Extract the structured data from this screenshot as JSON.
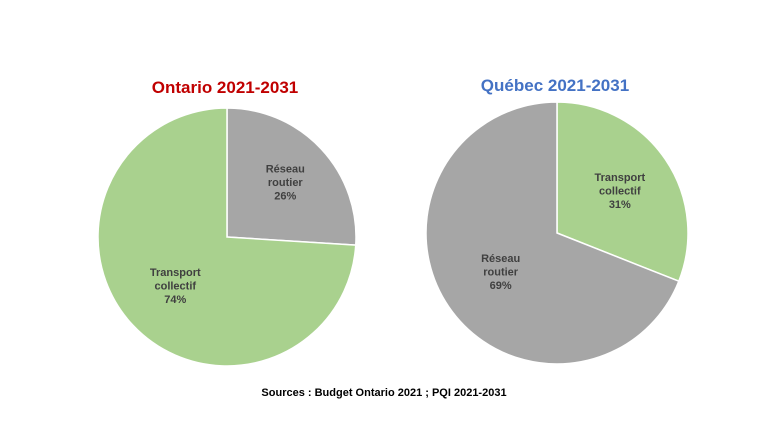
{
  "colors": {
    "routier": "#a6a6a6",
    "collectif": "#a9d18e",
    "ontario_title": "#c00000",
    "quebec_title": "#4472c4",
    "label": "#404040"
  },
  "chart_data": [
    {
      "type": "pie",
      "title": "Ontario 2021-2031",
      "slices": [
        {
          "label_lines": [
            "Réseau",
            "routier",
            "26%"
          ],
          "value": 26
        },
        {
          "label_lines": [
            "Transport",
            "collectif",
            "74%"
          ],
          "value": 74
        }
      ]
    },
    {
      "type": "pie",
      "title": "Québec 2021-2031",
      "slices": [
        {
          "label_lines": [
            "Transport",
            "collectif",
            "31%"
          ],
          "value": 31
        },
        {
          "label_lines": [
            "Réseau",
            "routier",
            "69%"
          ],
          "value": 69
        }
      ]
    }
  ],
  "source": "Sources : Budget Ontario 2021 ; PQI 2021-2031"
}
